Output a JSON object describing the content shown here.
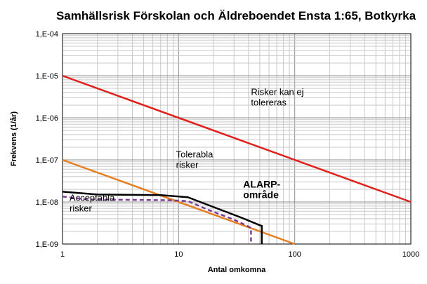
{
  "chart_data": {
    "type": "line",
    "title": "Samhällsrisk Förskolan och Äldreboendet Ensta 1:65, Botkyrka",
    "xlabel": "Antal omkomna",
    "ylabel": "Frekvens (1/år)",
    "xscale": "log",
    "yscale": "log",
    "xlim": [
      1,
      1000
    ],
    "ylim": [
      1e-09,
      0.0001
    ],
    "x_ticks": [
      {
        "value": 1,
        "label": "1"
      },
      {
        "value": 10,
        "label": "10"
      },
      {
        "value": 100,
        "label": "100"
      },
      {
        "value": 1000,
        "label": "1000"
      }
    ],
    "y_ticks": [
      {
        "value": 1e-09,
        "label": "1,E-09"
      },
      {
        "value": 1e-08,
        "label": "1,E-08"
      },
      {
        "value": 1e-07,
        "label": "1,E-07"
      },
      {
        "value": 1e-06,
        "label": "1,E-06"
      },
      {
        "value": 1e-05,
        "label": "1,E-05"
      },
      {
        "value": 0.0001,
        "label": "1,E-04"
      }
    ],
    "grid": true,
    "series": [
      {
        "color": "#e0201b",
        "style": "solid",
        "points": [
          [
            1,
            1e-05
          ],
          [
            1000,
            1e-08
          ]
        ]
      },
      {
        "color": "#e67e22",
        "style": "solid",
        "points": [
          [
            1,
            1e-07
          ],
          [
            100,
            1e-09
          ]
        ]
      },
      {
        "color": "#000000",
        "style": "solid",
        "points": [
          [
            1,
            1.75e-08
          ],
          [
            2,
            1.5e-08
          ],
          [
            7,
            1.45e-08
          ],
          [
            12,
            1.3e-08
          ],
          [
            14,
            1.1e-08
          ],
          [
            35,
            4.2e-09
          ],
          [
            50,
            2.8e-09
          ],
          [
            52,
            2.7e-09
          ],
          [
            52,
            1e-09
          ]
        ]
      },
      {
        "color": "#7d3c98",
        "style": "dashed",
        "points": [
          [
            1,
            1.35e-08
          ],
          [
            1.6,
            1.15e-08
          ],
          [
            8,
            1.1e-08
          ],
          [
            12,
            1.05e-08
          ],
          [
            18,
            6.5e-09
          ],
          [
            30,
            3.8e-09
          ],
          [
            40,
            2.6e-09
          ],
          [
            42,
            2.4e-09
          ],
          [
            42,
            1e-09
          ]
        ]
      }
    ],
    "annotations": [
      {
        "text": [
          "Risker kan ej",
          "tolereras"
        ],
        "x": 42,
        "y": 3.5e-06,
        "bold": false
      },
      {
        "text": [
          "Tolerabla",
          "risker"
        ],
        "x": 9.5,
        "y": 1.15e-07,
        "bold": false
      },
      {
        "text": [
          "ALARP-",
          "område"
        ],
        "x": 36,
        "y": 2.2e-08,
        "bold": true
      },
      {
        "text": [
          "Acceptabla",
          "risker"
        ],
        "x": 1.15,
        "y": 1.05e-08,
        "bold": false
      }
    ]
  }
}
